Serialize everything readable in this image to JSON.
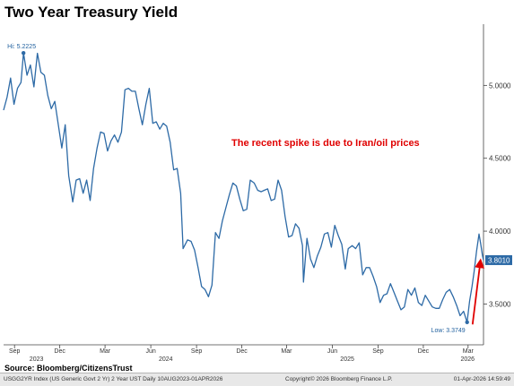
{
  "chart_data": {
    "type": "line",
    "title": "Two Year Treasury Yield",
    "xlabel": "",
    "ylabel": "",
    "ylim": [
      3.22,
      5.42
    ],
    "y_ticks": [
      3.5,
      4.0,
      4.5,
      5.0
    ],
    "y_tick_labels": [
      "3.5000",
      "4.0000",
      "4.5000",
      "5.0000"
    ],
    "x_tick_labels": [
      "Sep",
      "Dec",
      "Mar",
      "Jun",
      "Sep",
      "Dec",
      "Mar",
      "Jun",
      "Sep",
      "Dec",
      "Mar"
    ],
    "x_tick_dates": [
      "2023-09-01",
      "2023-12-01",
      "2024-03-01",
      "2024-06-01",
      "2024-09-01",
      "2024-12-01",
      "2025-03-01",
      "2025-06-01",
      "2025-09-01",
      "2025-12-01",
      "2026-03-01"
    ],
    "year_labels": [
      "2023",
      "2024",
      "2025",
      "2026"
    ],
    "year_label_dates": [
      "2023-10-15",
      "2024-07-01",
      "2025-07-01",
      "2026-02-28"
    ],
    "x_range": [
      "2023-08-10",
      "2026-04-01"
    ],
    "grid": false,
    "y_axis_side": "right",
    "line_color": "#2d6aa6",
    "series": [
      {
        "points": [
          [
            "2023-08-10",
            4.83
          ],
          [
            "2023-08-17",
            4.92
          ],
          [
            "2023-08-24",
            5.05
          ],
          [
            "2023-08-31",
            4.87
          ],
          [
            "2023-09-07",
            4.98
          ],
          [
            "2023-09-14",
            5.02
          ],
          [
            "2023-09-19",
            5.2225
          ],
          [
            "2023-09-26",
            5.07
          ],
          [
            "2023-10-03",
            5.14
          ],
          [
            "2023-10-10",
            4.99
          ],
          [
            "2023-10-17",
            5.22
          ],
          [
            "2023-10-24",
            5.09
          ],
          [
            "2023-10-31",
            5.07
          ],
          [
            "2023-11-07",
            4.93
          ],
          [
            "2023-11-14",
            4.84
          ],
          [
            "2023-11-21",
            4.89
          ],
          [
            "2023-11-28",
            4.73
          ],
          [
            "2023-12-05",
            4.57
          ],
          [
            "2023-12-12",
            4.73
          ],
          [
            "2023-12-19",
            4.38
          ],
          [
            "2023-12-27",
            4.2
          ],
          [
            "2024-01-03",
            4.35
          ],
          [
            "2024-01-10",
            4.36
          ],
          [
            "2024-01-17",
            4.26
          ],
          [
            "2024-01-24",
            4.35
          ],
          [
            "2024-01-31",
            4.21
          ],
          [
            "2024-02-07",
            4.43
          ],
          [
            "2024-02-14",
            4.57
          ],
          [
            "2024-02-21",
            4.68
          ],
          [
            "2024-02-28",
            4.67
          ],
          [
            "2024-03-06",
            4.55
          ],
          [
            "2024-03-13",
            4.62
          ],
          [
            "2024-03-20",
            4.66
          ],
          [
            "2024-03-27",
            4.61
          ],
          [
            "2024-04-03",
            4.68
          ],
          [
            "2024-04-10",
            4.97
          ],
          [
            "2024-04-17",
            4.98
          ],
          [
            "2024-04-24",
            4.96
          ],
          [
            "2024-05-01",
            4.96
          ],
          [
            "2024-05-08",
            4.84
          ],
          [
            "2024-05-15",
            4.73
          ],
          [
            "2024-05-22",
            4.87
          ],
          [
            "2024-05-29",
            4.98
          ],
          [
            "2024-06-05",
            4.74
          ],
          [
            "2024-06-12",
            4.75
          ],
          [
            "2024-06-19",
            4.7
          ],
          [
            "2024-06-26",
            4.74
          ],
          [
            "2024-07-03",
            4.72
          ],
          [
            "2024-07-10",
            4.61
          ],
          [
            "2024-07-17",
            4.42
          ],
          [
            "2024-07-24",
            4.43
          ],
          [
            "2024-07-31",
            4.26
          ],
          [
            "2024-08-05",
            3.88
          ],
          [
            "2024-08-14",
            3.94
          ],
          [
            "2024-08-21",
            3.93
          ],
          [
            "2024-08-28",
            3.87
          ],
          [
            "2024-09-04",
            3.75
          ],
          [
            "2024-09-11",
            3.62
          ],
          [
            "2024-09-18",
            3.6
          ],
          [
            "2024-09-25",
            3.55
          ],
          [
            "2024-10-02",
            3.63
          ],
          [
            "2024-10-09",
            3.99
          ],
          [
            "2024-10-16",
            3.95
          ],
          [
            "2024-10-23",
            4.07
          ],
          [
            "2024-10-30",
            4.16
          ],
          [
            "2024-11-06",
            4.25
          ],
          [
            "2024-11-13",
            4.33
          ],
          [
            "2024-11-20",
            4.31
          ],
          [
            "2024-11-27",
            4.22
          ],
          [
            "2024-12-04",
            4.14
          ],
          [
            "2024-12-11",
            4.15
          ],
          [
            "2024-12-18",
            4.35
          ],
          [
            "2024-12-26",
            4.33
          ],
          [
            "2025-01-02",
            4.28
          ],
          [
            "2025-01-09",
            4.27
          ],
          [
            "2025-01-15",
            4.28
          ],
          [
            "2025-01-22",
            4.29
          ],
          [
            "2025-01-29",
            4.21
          ],
          [
            "2025-02-05",
            4.22
          ],
          [
            "2025-02-12",
            4.35
          ],
          [
            "2025-02-19",
            4.28
          ],
          [
            "2025-02-26",
            4.1
          ],
          [
            "2025-03-05",
            3.96
          ],
          [
            "2025-03-12",
            3.97
          ],
          [
            "2025-03-19",
            4.05
          ],
          [
            "2025-03-26",
            4.02
          ],
          [
            "2025-04-02",
            3.9
          ],
          [
            "2025-04-04",
            3.65
          ],
          [
            "2025-04-11",
            3.95
          ],
          [
            "2025-04-18",
            3.81
          ],
          [
            "2025-04-25",
            3.75
          ],
          [
            "2025-05-02",
            3.83
          ],
          [
            "2025-05-09",
            3.89
          ],
          [
            "2025-05-16",
            3.98
          ],
          [
            "2025-05-23",
            3.99
          ],
          [
            "2025-05-30",
            3.89
          ],
          [
            "2025-06-06",
            4.04
          ],
          [
            "2025-06-13",
            3.97
          ],
          [
            "2025-06-20",
            3.91
          ],
          [
            "2025-06-27",
            3.74
          ],
          [
            "2025-07-03",
            3.88
          ],
          [
            "2025-07-11",
            3.9
          ],
          [
            "2025-07-18",
            3.88
          ],
          [
            "2025-07-25",
            3.92
          ],
          [
            "2025-08-01",
            3.7
          ],
          [
            "2025-08-08",
            3.75
          ],
          [
            "2025-08-15",
            3.75
          ],
          [
            "2025-08-22",
            3.69
          ],
          [
            "2025-08-29",
            3.62
          ],
          [
            "2025-09-05",
            3.51
          ],
          [
            "2025-09-12",
            3.56
          ],
          [
            "2025-09-19",
            3.57
          ],
          [
            "2025-09-26",
            3.64
          ],
          [
            "2025-10-03",
            3.58
          ],
          [
            "2025-10-10",
            3.52
          ],
          [
            "2025-10-17",
            3.46
          ],
          [
            "2025-10-24",
            3.48
          ],
          [
            "2025-10-31",
            3.6
          ],
          [
            "2025-11-07",
            3.56
          ],
          [
            "2025-11-14",
            3.61
          ],
          [
            "2025-11-21",
            3.51
          ],
          [
            "2025-11-28",
            3.49
          ],
          [
            "2025-12-05",
            3.56
          ],
          [
            "2025-12-12",
            3.52
          ],
          [
            "2025-12-19",
            3.48
          ],
          [
            "2025-12-26",
            3.47
          ],
          [
            "2026-01-02",
            3.47
          ],
          [
            "2026-01-09",
            3.53
          ],
          [
            "2026-01-16",
            3.58
          ],
          [
            "2026-01-23",
            3.6
          ],
          [
            "2026-01-30",
            3.55
          ],
          [
            "2026-02-06",
            3.49
          ],
          [
            "2026-02-13",
            3.42
          ],
          [
            "2026-02-20",
            3.45
          ],
          [
            "2026-02-27",
            3.3749
          ],
          [
            "2026-03-04",
            3.52
          ],
          [
            "2026-03-09",
            3.62
          ],
          [
            "2026-03-13",
            3.72
          ],
          [
            "2026-03-18",
            3.86
          ],
          [
            "2026-03-23",
            3.98
          ],
          [
            "2026-03-26",
            3.92
          ],
          [
            "2026-03-30",
            3.83
          ],
          [
            "2026-04-01",
            3.801
          ]
        ]
      }
    ],
    "high": {
      "label": "Hi: 5.2225",
      "date": "2023-09-19",
      "value": 5.2225
    },
    "low": {
      "label": "Low: 3.3749",
      "date": "2026-02-27",
      "value": 3.3749
    },
    "last_value": {
      "label": "3.8010",
      "value": 3.801,
      "color": "#2d6aa6"
    },
    "annotation": {
      "text": "The recent spike is due to Iran/oil prices",
      "color": "#e00000",
      "arrow_from": [
        "2026-03-10",
        3.36
      ],
      "arrow_to": [
        "2026-03-26",
        3.8
      ]
    }
  },
  "source": "Source:  Bloomberg/CitizensTrust",
  "footer": {
    "left": "USGG2YR Index (US Generic Govt 2 Yr) 2 Year UST Daily 10AUG2023-01APR2026",
    "center": "Copyright© 2026 Bloomberg Finance L.P.",
    "right": "01-Apr-2026 14:59:49"
  }
}
